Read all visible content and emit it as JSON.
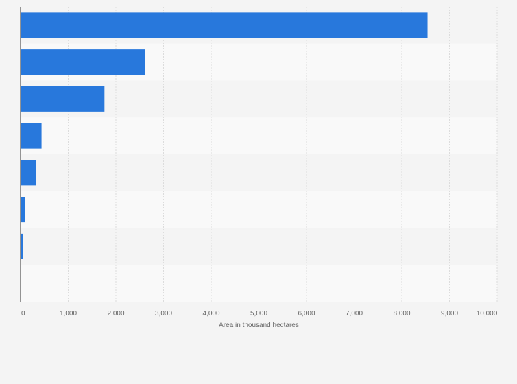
{
  "chart_data": {
    "type": "bar",
    "orientation": "horizontal",
    "categories": [
      "",
      "",
      "",
      "",
      "",
      "",
      "",
      ""
    ],
    "values": [
      8540,
      2610,
      1760,
      440,
      320,
      95,
      55,
      0
    ],
    "title": "",
    "xlabel": "Area in thousand hectares",
    "ylabel": "",
    "xlim": [
      0,
      10000
    ],
    "xticks": [
      "0",
      "1,000",
      "2,000",
      "3,000",
      "4,000",
      "5,000",
      "6,000",
      "7,000",
      "8,000",
      "9,000",
      "10,000"
    ],
    "grid": true,
    "legend": "none",
    "colors": {
      "bar": "#2878dc",
      "band_light": "#f9f9f9",
      "band_dark": "#f4f4f4",
      "grid": "#dcdcdc",
      "axis": "#333333",
      "text": "#666666"
    }
  }
}
